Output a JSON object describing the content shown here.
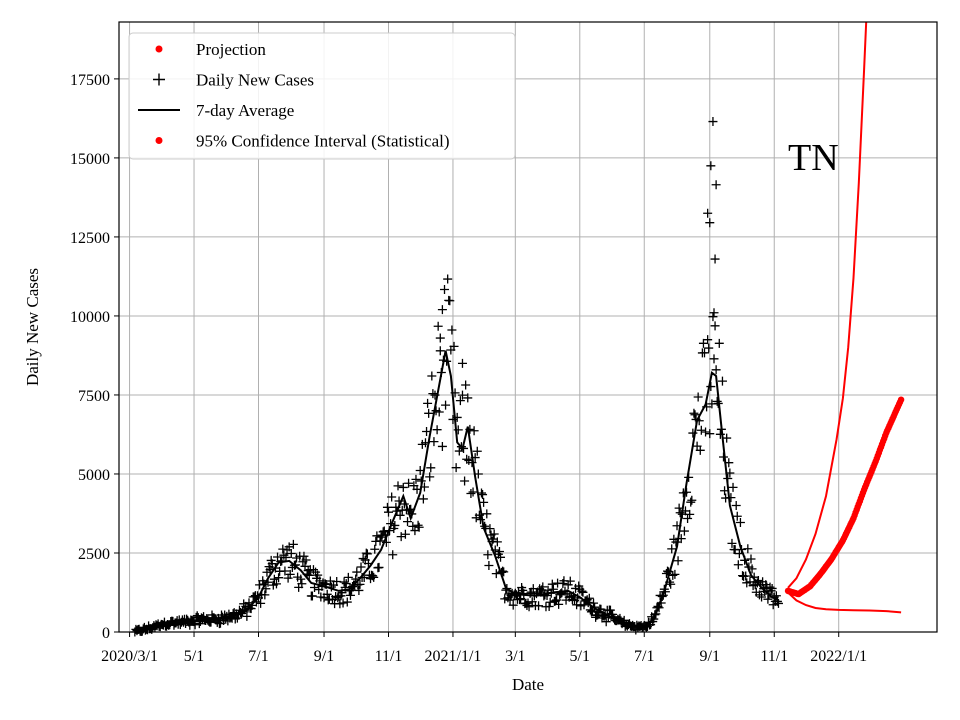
{
  "chart_data": {
    "type": "scatter",
    "title": "",
    "annotation": "TN",
    "xlabel": "Date",
    "ylabel": "Daily New Cases",
    "xlim": [
      "2020-02-20",
      "2022-04-04"
    ],
    "ylim": [
      0,
      19300
    ],
    "grid": true,
    "legend_position": "top-left",
    "x_ticks": [
      {
        "date": "2020-03-01",
        "label": "2020/3/1"
      },
      {
        "date": "2020-05-01",
        "label": "5/1"
      },
      {
        "date": "2020-07-01",
        "label": "7/1"
      },
      {
        "date": "2020-09-01",
        "label": "9/1"
      },
      {
        "date": "2020-11-01",
        "label": "11/1"
      },
      {
        "date": "2021-01-01",
        "label": "2021/1/1"
      },
      {
        "date": "2021-03-01",
        "label": "3/1"
      },
      {
        "date": "2021-05-01",
        "label": "5/1"
      },
      {
        "date": "2021-07-01",
        "label": "7/1"
      },
      {
        "date": "2021-09-01",
        "label": "9/1"
      },
      {
        "date": "2021-11-01",
        "label": "11/1"
      },
      {
        "date": "2022-01-01",
        "label": "2022/1/1"
      }
    ],
    "y_ticks": [
      0,
      2500,
      5000,
      7500,
      10000,
      12500,
      15000,
      17500
    ],
    "legend": [
      {
        "label": "Projection",
        "marker": "dot",
        "color": "#ff0000"
      },
      {
        "label": "Daily New Cases",
        "marker": "plus",
        "color": "#000000"
      },
      {
        "label": "7-day Average",
        "marker": "line",
        "color": "#000000"
      },
      {
        "label": "95% Confidence Interval (Statistical)",
        "marker": "dot",
        "color": "#ff0000"
      }
    ],
    "series": [
      {
        "name": "7-day Average",
        "style": "line",
        "color": "#000000",
        "points": [
          [
            "2020-03-06",
            0
          ],
          [
            "2020-03-20",
            120
          ],
          [
            "2020-04-05",
            280
          ],
          [
            "2020-04-20",
            300
          ],
          [
            "2020-05-05",
            380
          ],
          [
            "2020-05-20",
            400
          ],
          [
            "2020-06-05",
            480
          ],
          [
            "2020-06-20",
            700
          ],
          [
            "2020-07-01",
            1100
          ],
          [
            "2020-07-10",
            1700
          ],
          [
            "2020-07-20",
            2200
          ],
          [
            "2020-07-30",
            2250
          ],
          [
            "2020-08-10",
            1950
          ],
          [
            "2020-08-20",
            1550
          ],
          [
            "2020-09-01",
            1450
          ],
          [
            "2020-09-15",
            1300
          ],
          [
            "2020-09-25",
            1350
          ],
          [
            "2020-10-05",
            1700
          ],
          [
            "2020-10-15",
            2100
          ],
          [
            "2020-10-25",
            2600
          ],
          [
            "2020-11-05",
            3500
          ],
          [
            "2020-11-15",
            4300
          ],
          [
            "2020-11-22",
            3600
          ],
          [
            "2020-12-01",
            4400
          ],
          [
            "2020-12-10",
            6200
          ],
          [
            "2020-12-20",
            8000
          ],
          [
            "2020-12-25",
            8900
          ],
          [
            "2020-12-30",
            8100
          ],
          [
            "2021-01-05",
            6000
          ],
          [
            "2021-01-10",
            5800
          ],
          [
            "2021-01-15",
            6500
          ],
          [
            "2021-01-22",
            4900
          ],
          [
            "2021-01-30",
            3300
          ],
          [
            "2021-02-10",
            2400
          ],
          [
            "2021-02-20",
            1400
          ],
          [
            "2021-03-01",
            1200
          ],
          [
            "2021-03-20",
            1150
          ],
          [
            "2021-04-05",
            1250
          ],
          [
            "2021-04-20",
            1300
          ],
          [
            "2021-05-01",
            1100
          ],
          [
            "2021-05-15",
            750
          ],
          [
            "2021-06-01",
            450
          ],
          [
            "2021-06-15",
            200
          ],
          [
            "2021-07-01",
            150
          ],
          [
            "2021-07-10",
            400
          ],
          [
            "2021-07-20",
            1300
          ],
          [
            "2021-08-01",
            2700
          ],
          [
            "2021-08-10",
            4700
          ],
          [
            "2021-08-20",
            6700
          ],
          [
            "2021-08-28",
            7200
          ],
          [
            "2021-09-03",
            8200
          ],
          [
            "2021-09-07",
            8100
          ],
          [
            "2021-09-12",
            6500
          ],
          [
            "2021-09-20",
            4000
          ],
          [
            "2021-09-30",
            2700
          ],
          [
            "2021-10-10",
            1800
          ],
          [
            "2021-10-20",
            1400
          ],
          [
            "2021-10-30",
            1100
          ],
          [
            "2021-11-05",
            1000
          ]
        ]
      },
      {
        "name": "95% Confidence Interval upper",
        "style": "line",
        "color": "#ff0000",
        "points": [
          [
            "2021-11-14",
            1400
          ],
          [
            "2021-11-22",
            1700
          ],
          [
            "2021-12-01",
            2300
          ],
          [
            "2021-12-10",
            3100
          ],
          [
            "2021-12-20",
            4300
          ],
          [
            "2021-12-30",
            6100
          ],
          [
            "2022-01-05",
            7400
          ],
          [
            "2022-01-10",
            9000
          ],
          [
            "2022-01-15",
            11200
          ],
          [
            "2022-01-20",
            14200
          ],
          [
            "2022-01-25",
            17800
          ],
          [
            "2022-01-27",
            19300
          ]
        ]
      },
      {
        "name": "95% Confidence Interval lower",
        "style": "line",
        "color": "#ff0000",
        "points": [
          [
            "2021-11-14",
            1250
          ],
          [
            "2021-11-22",
            1000
          ],
          [
            "2021-12-01",
            850
          ],
          [
            "2021-12-10",
            760
          ],
          [
            "2021-12-20",
            720
          ],
          [
            "2022-01-01",
            700
          ],
          [
            "2022-01-15",
            690
          ],
          [
            "2022-01-30",
            680
          ],
          [
            "2022-02-15",
            660
          ],
          [
            "2022-03-01",
            620
          ]
        ]
      },
      {
        "name": "Projection",
        "style": "dots",
        "color": "#ff0000",
        "start": "2021-11-14",
        "end": "2022-03-01",
        "values_sampled": [
          [
            "2021-11-14",
            1300
          ],
          [
            "2021-11-24",
            1200
          ],
          [
            "2021-12-05",
            1450
          ],
          [
            "2021-12-15",
            1850
          ],
          [
            "2021-12-25",
            2300
          ],
          [
            "2022-01-05",
            2900
          ],
          [
            "2022-01-15",
            3600
          ],
          [
            "2022-01-25",
            4500
          ],
          [
            "2022-02-05",
            5400
          ],
          [
            "2022-02-15",
            6300
          ],
          [
            "2022-03-01",
            7350
          ]
        ]
      },
      {
        "name": "Daily New Cases",
        "style": "plus",
        "color": "#000000",
        "note": "Daily points scattered around the 7-day average; notable labelled peaks",
        "peaks": [
          [
            "2020-12-22",
            10200
          ],
          [
            "2020-12-20",
            9300
          ],
          [
            "2021-01-10",
            8500
          ],
          [
            "2021-09-04",
            16150
          ],
          [
            "2021-09-02",
            14750
          ],
          [
            "2021-09-07",
            14150
          ],
          [
            "2021-08-30",
            13250
          ],
          [
            "2021-09-01",
            12950
          ],
          [
            "2021-09-06",
            11800
          ],
          [
            "2021-09-05",
            10100
          ]
        ]
      }
    ]
  }
}
